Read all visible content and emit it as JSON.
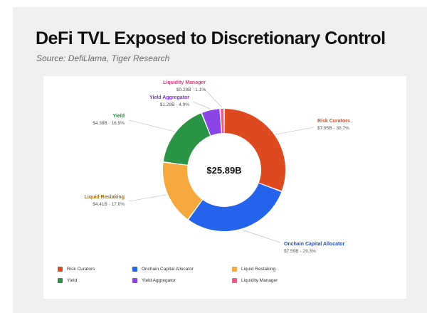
{
  "title": "DeFi TVL Exposed to Discretionary Control",
  "subtitle": "Source: DefiLlama, Tiger Research",
  "chart_data": {
    "type": "pie",
    "center_label": "$25.89B",
    "categories": [
      "Risk Curators",
      "Onchain Capital Allocator",
      "Liquid Restaking",
      "Yield",
      "Yield Aggregator",
      "Liquidity Manager"
    ],
    "values": [
      7.95,
      7.59,
      4.41,
      4.38,
      1.28,
      0.28
    ],
    "value_labels": [
      "$7.95B",
      "$7.59B",
      "$4.41B",
      "$4.38B",
      "$1.28B",
      "$0.28B"
    ],
    "percent_labels": [
      "30.7%",
      "29.3%",
      "17.0%",
      "16.9%",
      "4.9%",
      "1.1%"
    ],
    "colors": [
      "#dd4a22",
      "#2563eb",
      "#f5a83d",
      "#2a9444",
      "#8b45e6",
      "#ec5c8a"
    ],
    "label_colors": [
      "#d9481f",
      "#1f4fb5",
      "#a86d10",
      "#1d8a3a",
      "#7a35d8",
      "#d63f7a"
    ],
    "legend_placement": "bottom"
  }
}
